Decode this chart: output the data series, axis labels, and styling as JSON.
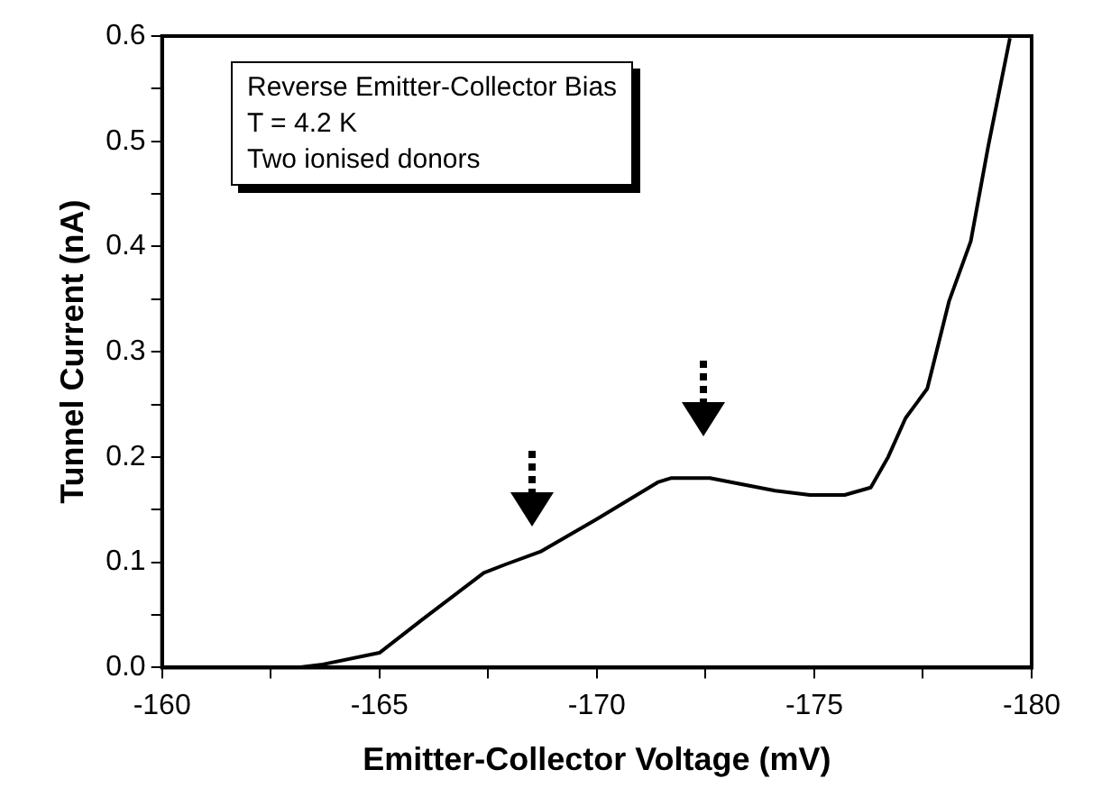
{
  "chart_data": {
    "type": "line",
    "xlabel": "Emitter-Collector Voltage (mV)",
    "ylabel": "Tunnel Current (nA)",
    "annotations": [
      "Reverse Emitter-Collector Bias",
      "T = 4.2 K",
      "Two ionised donors"
    ],
    "x": [
      -163.1,
      -163.7,
      -165,
      -166,
      -167.4,
      -167.9,
      -168.7,
      -170,
      -171.4,
      -171.7,
      -172.6,
      -174.1,
      -174.9,
      -175.7,
      -176.3,
      -176.7,
      -177.1,
      -177.6,
      -178.1,
      -178.6,
      -179.0,
      -179.5
    ],
    "series": [
      {
        "color": "#000000",
        "values": [
          0,
          0.003,
          0.014,
          0.046,
          0.09,
          0.098,
          0.11,
          0.141,
          0.176,
          0.18,
          0.18,
          0.168,
          0.164,
          0.164,
          0.171,
          0.2,
          0.237,
          0.265,
          0.348,
          0.405,
          0.495,
          0.598
        ]
      }
    ],
    "xlim": [
      -160,
      -180
    ],
    "xticks": [
      -160,
      {
        "value": -162.5,
        "label": null
      },
      -165,
      {
        "value": -167.5,
        "label": null
      },
      -170,
      {
        "value": -172.5,
        "label": null
      },
      -175,
      {
        "value": -177.5,
        "label": null
      },
      -180
    ],
    "ylim": [
      0,
      0.6
    ],
    "yticks": [
      {
        "value": 0,
        "label": "0.0"
      },
      {
        "value": 0.05,
        "label": null
      },
      {
        "value": 0.1,
        "label": "0.1"
      },
      {
        "value": 0.15,
        "label": null
      },
      {
        "value": 0.2,
        "label": "0.2"
      },
      {
        "value": 0.25,
        "label": null
      },
      {
        "value": 0.3,
        "label": "0.3"
      },
      {
        "value": 0.35,
        "label": null
      },
      {
        "value": 0.4,
        "label": "0.4"
      },
      {
        "value": 0.45,
        "label": null
      },
      {
        "value": 0.5,
        "label": "0.5"
      },
      {
        "value": 0.55,
        "label": null
      },
      {
        "value": 0.6,
        "label": "0.6"
      }
    ],
    "marker": "none",
    "line_style": "solid",
    "legend": false
  }
}
